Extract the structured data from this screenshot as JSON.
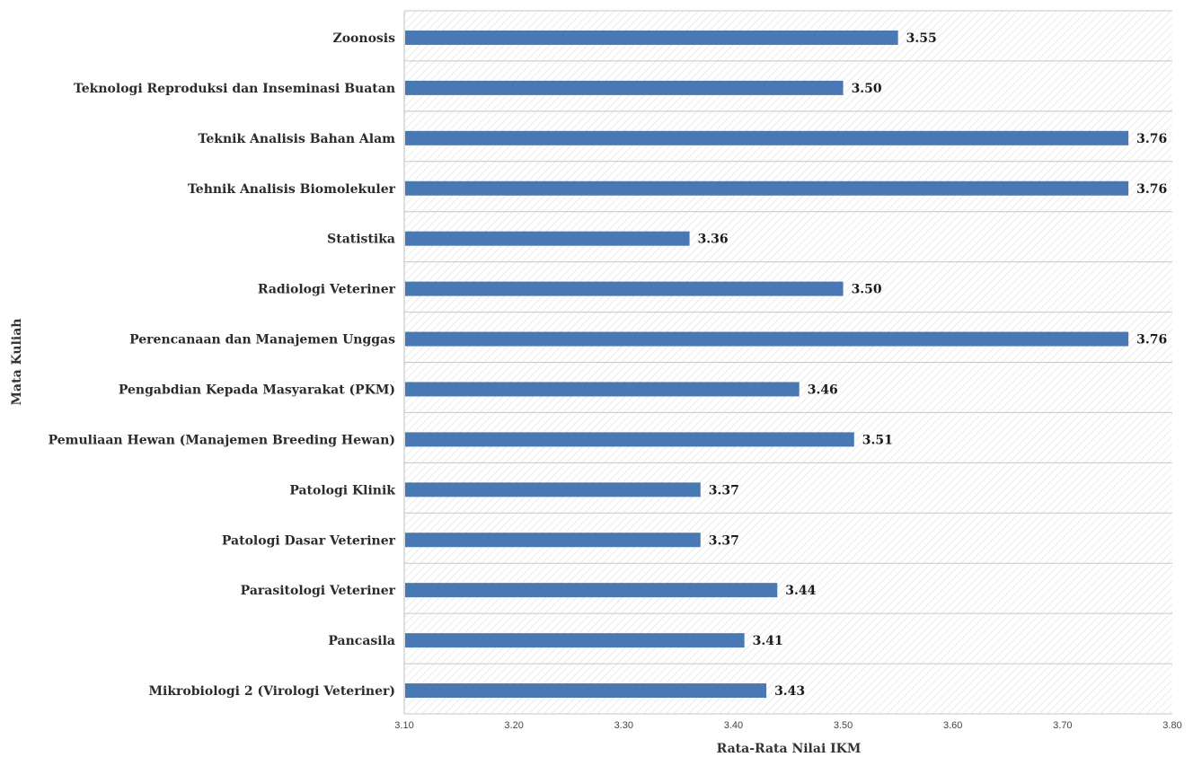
{
  "chart_data": {
    "type": "bar",
    "orientation": "horizontal",
    "title": "",
    "xlabel": "Rata-Rata Nilai IKM",
    "ylabel": "Mata Kuliah",
    "xlim": [
      3.1,
      3.8
    ],
    "x_ticks": [
      "3.10",
      "3.20",
      "3.30",
      "3.40",
      "3.50",
      "3.60",
      "3.70",
      "3.80"
    ],
    "grid": "horizontal",
    "legend": "none",
    "categories": [
      "Zoonosis",
      "Teknologi Reproduksi dan Inseminasi Buatan",
      "Teknik Analisis Bahan Alam",
      "Tehnik Analisis Biomolekuler",
      "Statistika",
      "Radiologi Veteriner",
      "Perencanaan dan Manajemen Unggas",
      "Pengabdian Kepada Masyarakat (PKM)",
      "Pemuliaan Hewan (Manajemen Breeding Hewan)",
      "Patologi Klinik",
      "Patologi Dasar Veteriner",
      "Parasitologi Veteriner",
      "Pancasila",
      "Mikrobiologi 2 (Virologi Veteriner)"
    ],
    "values": [
      3.55,
      3.5,
      3.76,
      3.76,
      3.36,
      3.5,
      3.76,
      3.46,
      3.51,
      3.37,
      3.37,
      3.44,
      3.41,
      3.43
    ],
    "value_labels": [
      "3.55",
      "3.50",
      "3.76",
      "3.76",
      "3.36",
      "3.50",
      "3.76",
      "3.46",
      "3.51",
      "3.37",
      "3.37",
      "3.44",
      "3.41",
      "3.43"
    ],
    "colors": {
      "bar": "#4a78b5",
      "grid": "#c8c8c8",
      "hatch": "#d9d9d9",
      "axis": "#bfbfbf"
    }
  }
}
